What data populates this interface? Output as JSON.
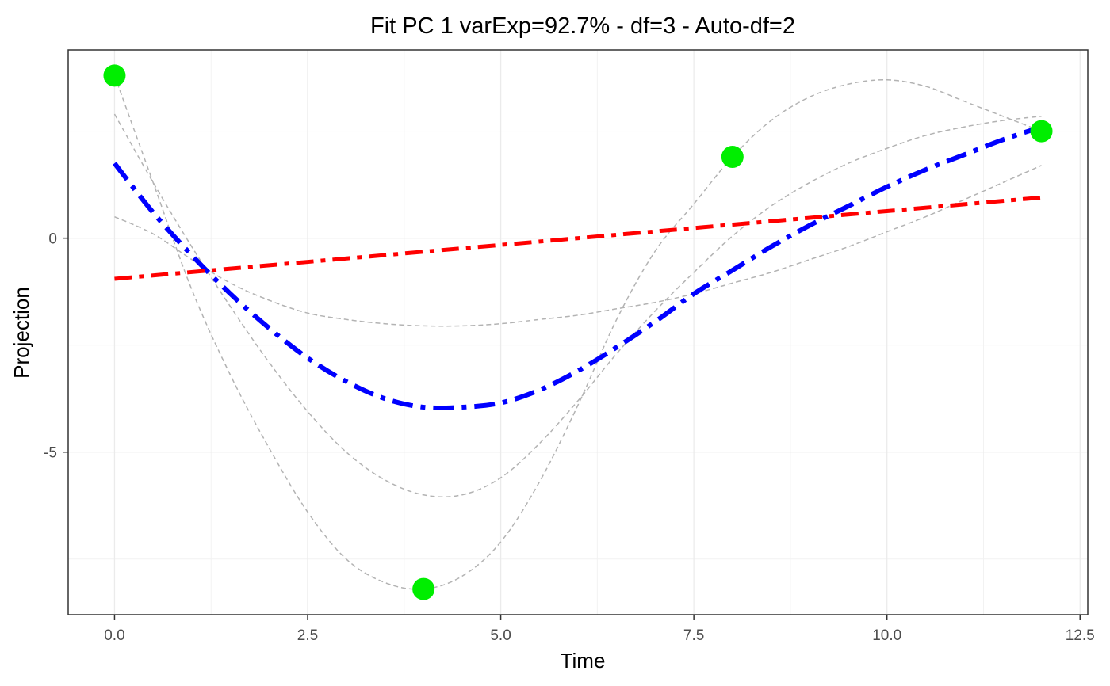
{
  "chart_data": {
    "type": "line",
    "title": "Fit PC 1 varExp=92.7% - df=3 - Auto-df=2",
    "xlabel": "Time",
    "ylabel": "Projection",
    "xlim": [
      -0.6,
      12.6
    ],
    "ylim": [
      -8.8,
      4.4
    ],
    "x_ticks": [
      {
        "value": 0,
        "label": "0.0"
      },
      {
        "value": 2.5,
        "label": "2.5"
      },
      {
        "value": 5,
        "label": "5.0"
      },
      {
        "value": 7.5,
        "label": "7.5"
      },
      {
        "value": 10,
        "label": "10.0"
      },
      {
        "value": 12.5,
        "label": "12.5"
      }
    ],
    "y_ticks": [
      {
        "value": 0,
        "label": "0"
      },
      {
        "value": -5,
        "label": "-5"
      }
    ],
    "grid": true,
    "legend": "none",
    "colors": {
      "observed": "#00ee00",
      "df_fit": "#0000ff",
      "auto_fit": "#ff0000",
      "candidate": "#b3b3b3"
    },
    "observed_points": [
      {
        "x": 0,
        "y": 3.8
      },
      {
        "x": 4,
        "y": -8.2
      },
      {
        "x": 8,
        "y": 1.9
      },
      {
        "x": 12,
        "y": 2.5
      }
    ],
    "fits": [
      {
        "style": "dot-dash-thick",
        "color_key": "df_fit",
        "x": [
          0,
          0.5,
          1,
          1.5,
          2,
          2.5,
          3,
          3.5,
          4,
          4.5,
          5,
          5.5,
          6,
          6.5,
          7,
          7.5,
          8,
          8.5,
          9,
          9.5,
          10,
          10.5,
          11,
          11.5,
          12
        ],
        "y": [
          1.75,
          0.6,
          -0.4,
          -1.3,
          -2.1,
          -2.8,
          -3.35,
          -3.75,
          -3.95,
          -3.95,
          -3.85,
          -3.55,
          -3.1,
          -2.55,
          -1.95,
          -1.3,
          -0.75,
          -0.2,
          0.3,
          0.75,
          1.2,
          1.6,
          1.95,
          2.3,
          2.6
        ]
      },
      {
        "style": "dot-dash",
        "color_key": "auto_fit",
        "x": [
          0,
          12
        ],
        "y": [
          -0.95,
          0.95
        ]
      }
    ],
    "candidates": [
      {
        "x": [
          0,
          0.5,
          1,
          1.5,
          2,
          2.5,
          3,
          3.5,
          4,
          4.5,
          5,
          5.5,
          6,
          6.5,
          7,
          7.5,
          8,
          8.5,
          9,
          9.5,
          10,
          10.5,
          11,
          11.5,
          12
        ],
        "y": [
          3.8,
          1.3,
          -1.2,
          -3.2,
          -4.9,
          -6.4,
          -7.5,
          -8.05,
          -8.2,
          -7.9,
          -7.1,
          -5.7,
          -3.9,
          -1.9,
          -0.3,
          0.8,
          1.9,
          2.75,
          3.3,
          3.6,
          3.7,
          3.55,
          3.2,
          2.85,
          2.5
        ]
      },
      {
        "x": [
          0,
          0.5,
          1,
          1.5,
          2,
          2.5,
          3,
          3.5,
          4,
          4.5,
          5,
          5.5,
          6,
          6.5,
          7,
          7.5,
          8,
          8.5,
          9,
          9.5,
          10,
          10.5,
          11,
          11.5,
          12
        ],
        "y": [
          2.9,
          1.3,
          -0.2,
          -1.6,
          -2.9,
          -4.05,
          -5.0,
          -5.65,
          -6.0,
          -6.0,
          -5.6,
          -4.8,
          -3.8,
          -2.7,
          -1.7,
          -0.8,
          0.05,
          0.75,
          1.3,
          1.75,
          2.1,
          2.4,
          2.6,
          2.75,
          2.85
        ]
      },
      {
        "x": [
          0,
          0.5,
          1,
          1.5,
          2,
          2.5,
          3,
          3.5,
          4,
          4.5,
          5,
          5.5,
          6,
          6.5,
          7,
          7.5,
          8,
          8.5,
          9,
          9.5,
          10,
          10.5,
          11,
          11.5,
          12
        ],
        "y": [
          0.5,
          0.1,
          -0.5,
          -1.05,
          -1.45,
          -1.75,
          -1.9,
          -2.0,
          -2.05,
          -2.05,
          -2.0,
          -1.9,
          -1.8,
          -1.65,
          -1.5,
          -1.3,
          -1.05,
          -0.8,
          -0.5,
          -0.2,
          0.15,
          0.5,
          0.9,
          1.3,
          1.7
        ]
      }
    ]
  }
}
